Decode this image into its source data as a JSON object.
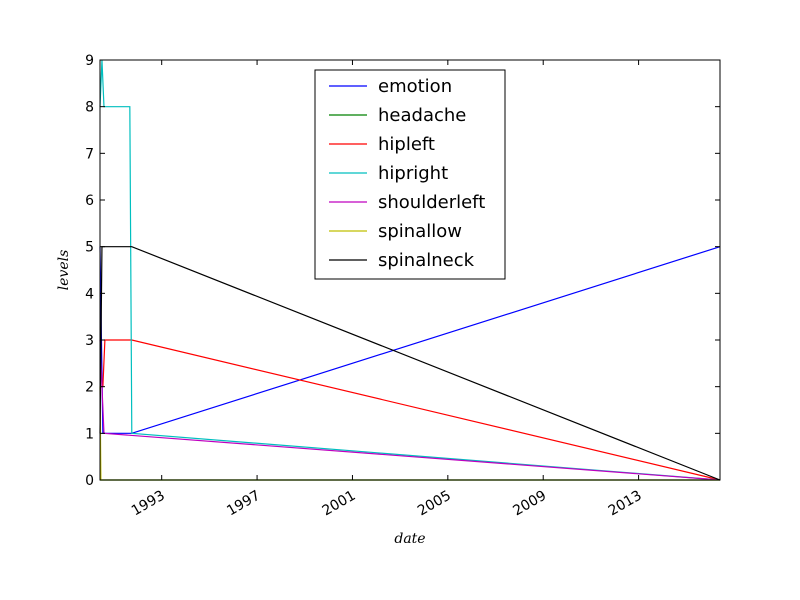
{
  "chart_data": {
    "type": "line",
    "title": "",
    "xlabel": "date",
    "ylabel": "levels",
    "xlim": [
      "1990-06-01",
      "2016-06-01"
    ],
    "ylim": [
      0,
      9
    ],
    "x_ticks": [
      "1993",
      "1997",
      "2001",
      "2005",
      "2009",
      "2013"
    ],
    "y_ticks": [
      "0",
      "1",
      "2",
      "3",
      "4",
      "5",
      "6",
      "7",
      "8",
      "9"
    ],
    "grid": false,
    "legend_position": "top-center",
    "series": [
      {
        "name": "emotion",
        "color": "#0000ff",
        "points": [
          [
            "1990-06-01",
            5
          ],
          [
            "1990-07-15",
            1
          ],
          [
            "1991-10-01",
            1
          ],
          [
            "2016-06-01",
            5
          ]
        ]
      },
      {
        "name": "headache",
        "color": "#008000",
        "points": [
          [
            "1990-06-01",
            0
          ],
          [
            "2016-06-01",
            0
          ]
        ]
      },
      {
        "name": "hipleft",
        "color": "#ff0000",
        "points": [
          [
            "1990-06-01",
            2
          ],
          [
            "1990-07-15",
            2
          ],
          [
            "1990-08-15",
            3
          ],
          [
            "1991-10-01",
            3
          ],
          [
            "2016-06-01",
            0
          ]
        ]
      },
      {
        "name": "hipright",
        "color": "#00bfbf",
        "points": [
          [
            "1990-06-01",
            8
          ],
          [
            "1990-07-01",
            9
          ],
          [
            "1990-08-01",
            8
          ],
          [
            "1991-09-01",
            8
          ],
          [
            "1991-10-01",
            1
          ],
          [
            "2016-06-01",
            0
          ]
        ]
      },
      {
        "name": "shoulderleft",
        "color": "#bf00bf",
        "points": [
          [
            "1990-06-01",
            3
          ],
          [
            "1990-07-01",
            2
          ],
          [
            "1990-08-01",
            1
          ],
          [
            "2016-06-01",
            0
          ]
        ]
      },
      {
        "name": "spinallow",
        "color": "#bfbf00",
        "points": [
          [
            "1990-06-01",
            2
          ],
          [
            "1990-06-15",
            0
          ],
          [
            "2016-06-01",
            0
          ]
        ]
      },
      {
        "name": "spinalneck",
        "color": "#000000",
        "points": [
          [
            "1990-06-01",
            1
          ],
          [
            "1990-07-01",
            5
          ],
          [
            "1991-10-01",
            5
          ],
          [
            "2016-06-01",
            0
          ]
        ]
      }
    ]
  }
}
